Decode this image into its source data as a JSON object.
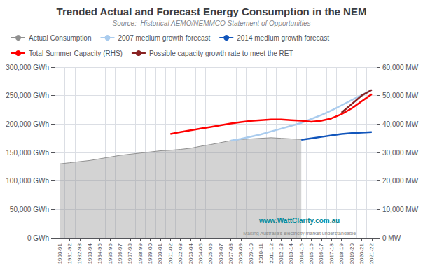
{
  "chart_data": {
    "type": "line",
    "title": "Trended Actual and Forecast Energy Consumption in the NEM",
    "subtitle": "Source:  Historical AEMO/NEMMCO Statement of Opportunities",
    "categories": [
      "1990-91",
      "1991-92",
      "1992-93",
      "1993-94",
      "1994-95",
      "1995-96",
      "1996-97",
      "1997-98",
      "1998-99",
      "1999-00",
      "2000-01",
      "2001-02",
      "2002-03",
      "2003-04",
      "2004-05",
      "2005-06",
      "2006-07",
      "2007-08",
      "2008-09",
      "2009-10",
      "2010-11",
      "2011-12",
      "2012-13",
      "2013-14",
      "2014-15",
      "2015-16",
      "2016-17",
      "2017-18",
      "2018-19",
      "2019-20",
      "2020-21",
      "2021-22"
    ],
    "series": [
      {
        "name": "Actual Consumption",
        "type": "area",
        "color": "#909090",
        "values": [
          130000,
          132000,
          134000,
          136000,
          139000,
          142000,
          145000,
          147000,
          149000,
          151000,
          153000,
          154000,
          155500,
          157500,
          161000,
          164000,
          167500,
          171000,
          173000,
          174000,
          175000,
          176000,
          175000,
          174000,
          173000,
          null,
          null,
          null,
          null,
          null,
          null,
          null
        ]
      },
      {
        "name": "2007 medium growth forecast",
        "type": "line",
        "color": "#aaccee",
        "values": [
          null,
          null,
          null,
          null,
          null,
          null,
          null,
          null,
          null,
          null,
          null,
          null,
          null,
          null,
          null,
          null,
          null,
          171000,
          174000,
          178000,
          182000,
          187000,
          192000,
          197000,
          202000,
          209000,
          216000,
          224000,
          233000,
          242000,
          251000,
          260000
        ]
      },
      {
        "name": "2014 medium growth forecast",
        "type": "line",
        "color": "#1155bb",
        "axis": "y2",
        "values": [
          null,
          null,
          null,
          null,
          null,
          null,
          null,
          null,
          null,
          null,
          null,
          null,
          null,
          null,
          null,
          null,
          null,
          null,
          null,
          null,
          null,
          null,
          null,
          null,
          34500,
          35000,
          35500,
          36000,
          36500,
          36800,
          37000,
          37200
        ]
      },
      {
        "name": "Total Summer Capacity (RHS)",
        "type": "line",
        "color": "#ff0000",
        "axis": "y2",
        "values": [
          null,
          null,
          null,
          null,
          null,
          null,
          null,
          null,
          null,
          null,
          null,
          36500,
          37200,
          37800,
          38400,
          39000,
          39600,
          40200,
          40700,
          41100,
          41400,
          41600,
          41600,
          41400,
          41200,
          40800,
          41200,
          42000,
          43500,
          45500,
          48000,
          50500
        ]
      },
      {
        "name": "Possible capacity growth rate to meet the RET",
        "type": "line",
        "color": "#882222",
        "axis": "y2",
        "values": [
          null,
          null,
          null,
          null,
          null,
          null,
          null,
          null,
          null,
          null,
          null,
          null,
          null,
          null,
          null,
          null,
          null,
          null,
          null,
          null,
          null,
          null,
          null,
          null,
          null,
          null,
          null,
          null,
          44000,
          47000,
          50000,
          52000
        ]
      }
    ],
    "ylim": [
      0,
      300000
    ],
    "yticks": [
      {
        "value": 0,
        "label": "0 GWh"
      },
      {
        "value": 50000,
        "label": "50,000 GWh"
      },
      {
        "value": 100000,
        "label": "100,000 GWh"
      },
      {
        "value": 150000,
        "label": "150,000 GWh"
      },
      {
        "value": 200000,
        "label": "200,000 GWh"
      },
      {
        "value": 250000,
        "label": "250,000 GWh"
      },
      {
        "value": 300000,
        "label": "300,000 GWh"
      }
    ],
    "y2lim": [
      0,
      60000
    ],
    "y2ticks": [
      {
        "value": 0,
        "label": "0 MW"
      },
      {
        "value": 10000,
        "label": "10,000 MW"
      },
      {
        "value": 20000,
        "label": "20,000 MW"
      },
      {
        "value": 30000,
        "label": "30,000 MW"
      },
      {
        "value": 40000,
        "label": "40,000 MW"
      },
      {
        "value": 50000,
        "label": "50,000 MW"
      },
      {
        "value": 60000,
        "label": "60,000 MW"
      }
    ],
    "grid": true,
    "legend": "upper left",
    "annotations": [
      {
        "text": "www.WattClarity.com.au",
        "color": "#008899"
      },
      {
        "text": "Making Australia's electricity market understandable",
        "color": "#888888"
      }
    ]
  }
}
